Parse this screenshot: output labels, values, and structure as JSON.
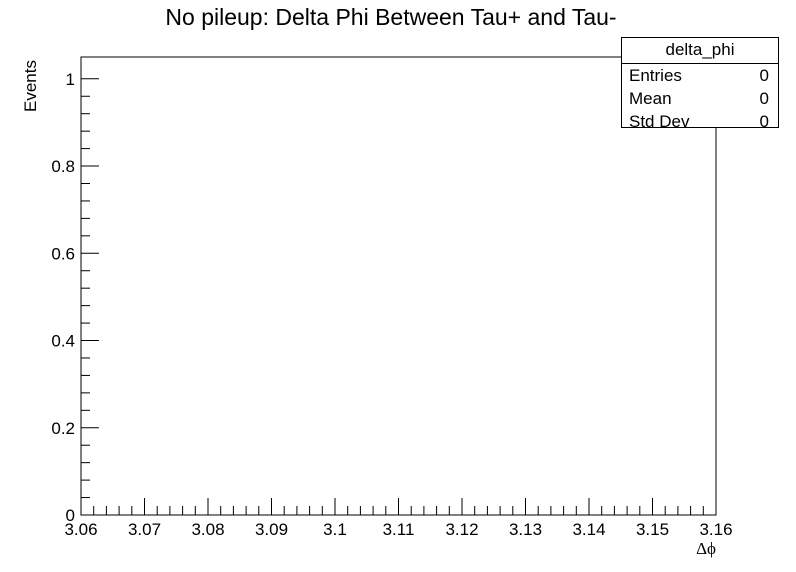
{
  "chart_data": {
    "type": "bar",
    "title": "No pileup:  Delta Phi Between Tau+ and Tau-",
    "xlabel": "Δϕ",
    "ylabel": "Events",
    "xlim": [
      3.06,
      3.16
    ],
    "ylim": [
      0,
      1.05
    ],
    "x_ticks": [
      "3.06",
      "3.07",
      "3.08",
      "3.09",
      "3.1",
      "3.11",
      "3.12",
      "3.13",
      "3.14",
      "3.15",
      "3.16"
    ],
    "y_ticks": [
      "0",
      "0.2",
      "0.4",
      "0.6",
      "0.8",
      "1"
    ],
    "series": [],
    "grid": false,
    "legend": "top-right"
  },
  "stats_box": {
    "name": "delta_phi",
    "rows": [
      {
        "label": "Entries",
        "value": "0"
      },
      {
        "label": "Mean",
        "value": "0"
      },
      {
        "label": "Std Dev",
        "value": "0"
      }
    ]
  }
}
